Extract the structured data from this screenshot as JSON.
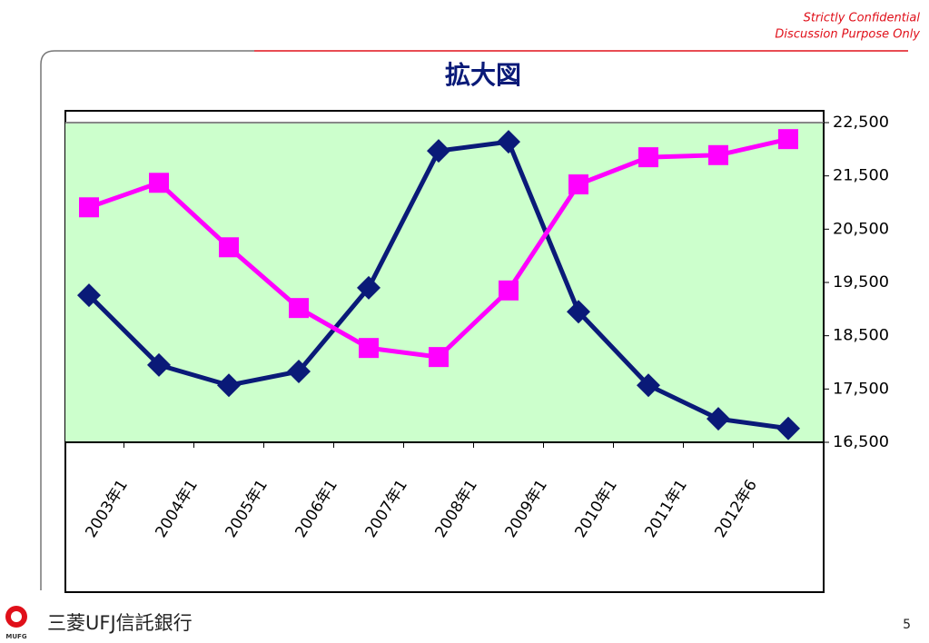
{
  "header": {
    "confidential": "Strictly Confidential",
    "purpose": "Discussion Purpose Only"
  },
  "footer": {
    "brand": "三菱UFJ信託銀行",
    "logo_text": "MUFG",
    "page": "5"
  },
  "chart_data": {
    "type": "line",
    "title": "拡大図",
    "xtick_labels": [
      "2003年1",
      "2004年1",
      "2005年1",
      "2006年1",
      "2007年1",
      "2008年1",
      "2009年1",
      "2010年1",
      "2011年1",
      "2012年6"
    ],
    "series": [
      {
        "color": "#0a1a78",
        "marker": "diamond",
        "values": [
          19260,
          17950,
          17570,
          17830,
          19400,
          21970,
          22140,
          18950,
          17570,
          16940,
          16760
        ]
      },
      {
        "color": "#ff00ff",
        "marker": "square",
        "values": [
          20910,
          21370,
          20160,
          19020,
          18270,
          18100,
          19350,
          21340,
          21850,
          21890,
          22190
        ]
      }
    ],
    "ylim": [
      16500,
      22500
    ],
    "yticks": [
      {
        "value": 16500,
        "label": "16,500"
      },
      {
        "value": 17500,
        "label": "17,500"
      },
      {
        "value": 18500,
        "label": "18,500"
      },
      {
        "value": 19500,
        "label": "19,500"
      },
      {
        "value": 20500,
        "label": "20,500"
      },
      {
        "value": 21500,
        "label": "21,500"
      },
      {
        "value": 22500,
        "label": "22,500"
      }
    ],
    "yaxis_side": "right",
    "plot_color": "#ccffcc"
  }
}
